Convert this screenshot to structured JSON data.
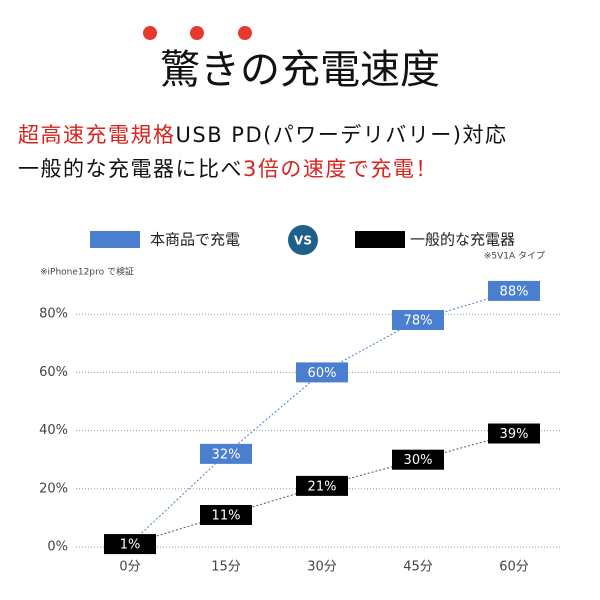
{
  "header": {
    "title": "驚きの充電速度",
    "line1": [
      "超高速充電規格",
      "USB PD(パワーデリバリー)対応"
    ],
    "line2": [
      "一般的な充電器に比べ",
      "3倍の速度で充電！"
    ]
  },
  "chart_data": {
    "type": "line",
    "categories": [
      "0分",
      "15分",
      "30分",
      "45分",
      "60分"
    ],
    "series": [
      {
        "name": "本商品で充電",
        "color": "#4a7fd0",
        "values": [
          null,
          32,
          60,
          78,
          88
        ],
        "value_labels": [
          null,
          "32%",
          "60%",
          "78%",
          "88%"
        ]
      },
      {
        "name": "一般的な充電器",
        "color": "#000000",
        "values": [
          1,
          11,
          21,
          30,
          39
        ],
        "value_labels": [
          "1%",
          "11%",
          "21%",
          "30%",
          "39%"
        ]
      }
    ],
    "ylim": [
      0,
      100
    ],
    "yticks": [
      {
        "value": 0,
        "label": "0%"
      },
      {
        "value": 20,
        "label": "20%"
      },
      {
        "value": 40,
        "label": "40%"
      },
      {
        "value": 60,
        "label": "60%"
      },
      {
        "value": 80,
        "label": "80%"
      }
    ],
    "grid": true,
    "vs_label": "VS",
    "annotations": [
      "※iPhone12pro で検証",
      "※5V1A タイプ"
    ]
  }
}
